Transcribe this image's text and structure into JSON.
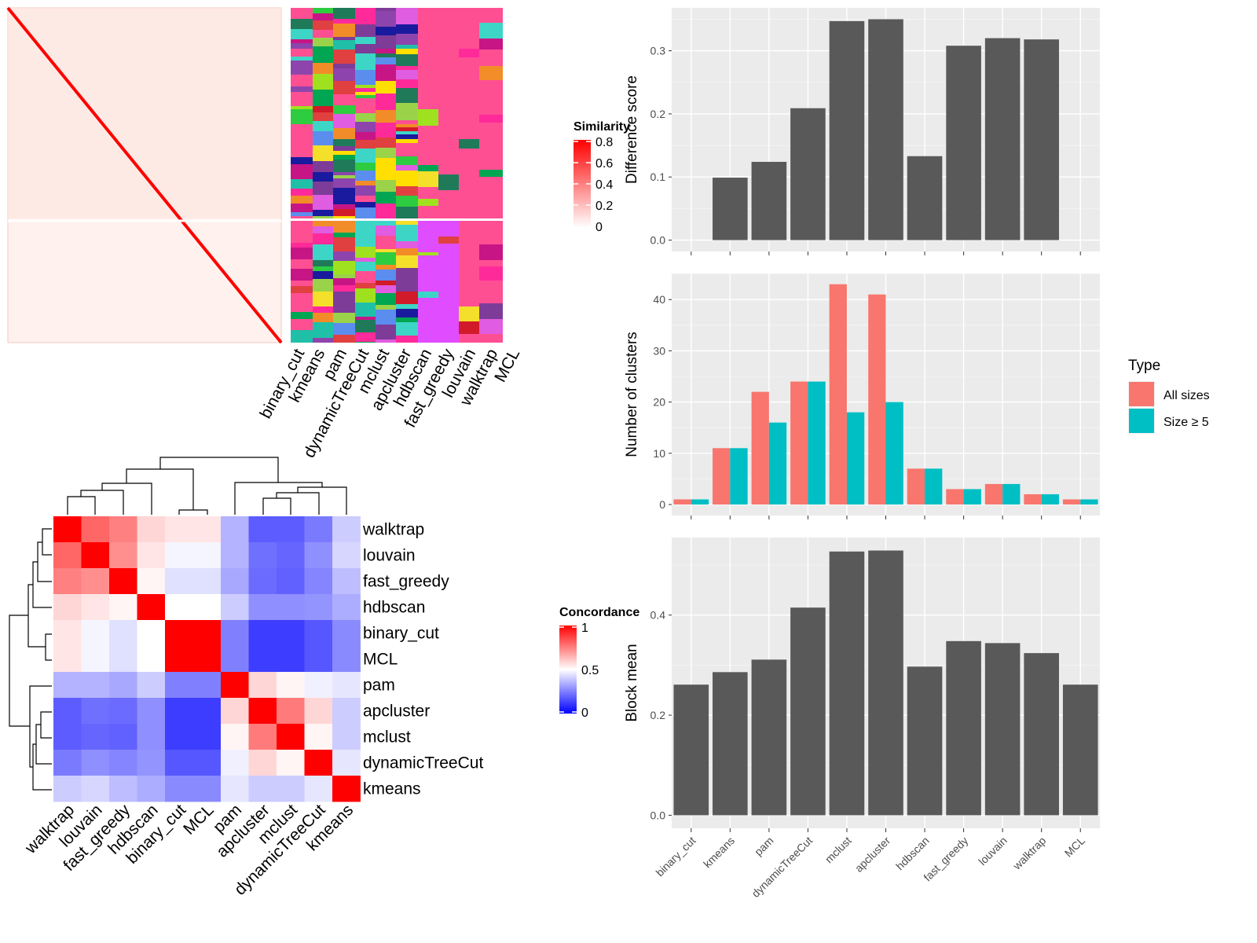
{
  "chart_data": [
    {
      "type": "heatmap",
      "panel": "similarity",
      "legend_title": "Similarity",
      "legend_ticks": [
        "0",
        "0.2",
        "0.4",
        "0.6",
        "0.8"
      ],
      "legend_colors": {
        "low": "#ffffff",
        "high": "#ff0000"
      },
      "methods": [
        "binary_cut",
        "kmeans",
        "pam",
        "dynamicTreeCut",
        "mclust",
        "apcluster",
        "hdbscan",
        "fast_greedy",
        "louvain",
        "walktrap",
        "MCL"
      ]
    },
    {
      "type": "heatmap",
      "panel": "concordance",
      "legend_title": "Concordance",
      "legend_ticks": [
        "0",
        "0.5",
        "1"
      ],
      "legend_colors": {
        "low": "#0000ff",
        "mid": "#ffffff",
        "high": "#ff0000"
      },
      "rows": [
        "walktrap",
        "louvain",
        "fast_greedy",
        "hdbscan",
        "binary_cut",
        "MCL",
        "pam",
        "apcluster",
        "mclust",
        "dynamicTreeCut",
        "kmeans"
      ],
      "columns": [
        "walktrap",
        "louvain",
        "fast_greedy",
        "hdbscan",
        "binary_cut",
        "MCL",
        "pam",
        "apcluster",
        "mclust",
        "dynamicTreeCut",
        "kmeans"
      ],
      "values": [
        [
          1.0,
          0.8,
          0.75,
          0.58,
          0.55,
          0.55,
          0.35,
          0.18,
          0.18,
          0.24,
          0.4
        ],
        [
          0.8,
          1.0,
          0.72,
          0.55,
          0.48,
          0.48,
          0.35,
          0.22,
          0.2,
          0.28,
          0.42
        ],
        [
          0.75,
          0.72,
          1.0,
          0.52,
          0.44,
          0.44,
          0.33,
          0.21,
          0.19,
          0.26,
          0.37
        ],
        [
          0.58,
          0.55,
          0.52,
          1.0,
          0.5,
          0.5,
          0.4,
          0.28,
          0.28,
          0.29,
          0.34
        ],
        [
          0.55,
          0.48,
          0.44,
          0.5,
          1.0,
          1.0,
          0.25,
          0.12,
          0.12,
          0.17,
          0.27
        ],
        [
          0.55,
          0.48,
          0.44,
          0.5,
          1.0,
          1.0,
          0.25,
          0.12,
          0.12,
          0.17,
          0.27
        ],
        [
          0.35,
          0.35,
          0.33,
          0.4,
          0.25,
          0.25,
          1.0,
          0.58,
          0.52,
          0.47,
          0.45
        ],
        [
          0.18,
          0.22,
          0.21,
          0.28,
          0.12,
          0.12,
          0.58,
          1.0,
          0.76,
          0.58,
          0.4
        ],
        [
          0.18,
          0.2,
          0.19,
          0.28,
          0.12,
          0.12,
          0.52,
          0.76,
          1.0,
          0.52,
          0.4
        ],
        [
          0.24,
          0.28,
          0.26,
          0.29,
          0.17,
          0.17,
          0.47,
          0.58,
          0.52,
          1.0,
          0.45
        ],
        [
          0.4,
          0.42,
          0.37,
          0.34,
          0.27,
          0.27,
          0.45,
          0.4,
          0.4,
          0.45,
          1.0
        ]
      ]
    },
    {
      "type": "bar",
      "panel": "difference",
      "categories": [
        "binary_cut",
        "kmeans",
        "pam",
        "dynamicTreeCut",
        "mclust",
        "apcluster",
        "hdbscan",
        "fast_greedy",
        "louvain",
        "walktrap",
        "MCL"
      ],
      "values": [
        0,
        0.099,
        0.124,
        0.209,
        0.347,
        0.35,
        0.133,
        0.308,
        0.32,
        0.318,
        0
      ],
      "ylabel": "Difference score",
      "ylim": [
        -0.018,
        0.368
      ],
      "yticks": [
        "0.0",
        "0.1",
        "0.2",
        "0.3"
      ],
      "ytick_values": [
        0,
        0.1,
        0.2,
        0.3
      ],
      "bar_color": "#595959"
    },
    {
      "type": "bar",
      "panel": "clusters",
      "categories": [
        "binary_cut",
        "kmeans",
        "pam",
        "dynamicTreeCut",
        "mclust",
        "apcluster",
        "hdbscan",
        "fast_greedy",
        "louvain",
        "walktrap",
        "MCL"
      ],
      "series": [
        {
          "name": "All sizes",
          "color": "#f8766d",
          "values": [
            1,
            11,
            22,
            24,
            43,
            41,
            7,
            3,
            4,
            2,
            1
          ]
        },
        {
          "name": "Size ≥ 5",
          "color": "#00bfc4",
          "values": [
            1,
            11,
            16,
            24,
            18,
            20,
            7,
            3,
            4,
            2,
            1
          ]
        }
      ],
      "ylabel": "Number of clusters",
      "ylim": [
        -2.15,
        45.1
      ],
      "yticks": [
        "0",
        "10",
        "20",
        "30",
        "40"
      ],
      "ytick_values": [
        0,
        10,
        20,
        30,
        40
      ],
      "legend_title": "Type",
      "legend_position": "right"
    },
    {
      "type": "bar",
      "panel": "block_mean",
      "categories": [
        "binary_cut",
        "kmeans",
        "pam",
        "dynamicTreeCut",
        "mclust",
        "apcluster",
        "hdbscan",
        "fast_greedy",
        "louvain",
        "walktrap",
        "MCL"
      ],
      "values": [
        0.261,
        0.286,
        0.311,
        0.415,
        0.527,
        0.529,
        0.297,
        0.348,
        0.344,
        0.324,
        0.261
      ],
      "ylabel": "Block mean",
      "ylim": [
        -0.026,
        0.555
      ],
      "yticks": [
        "0.0",
        "0.2",
        "0.4"
      ],
      "ytick_values": [
        0,
        0.2,
        0.4
      ],
      "bar_color": "#595959"
    }
  ]
}
